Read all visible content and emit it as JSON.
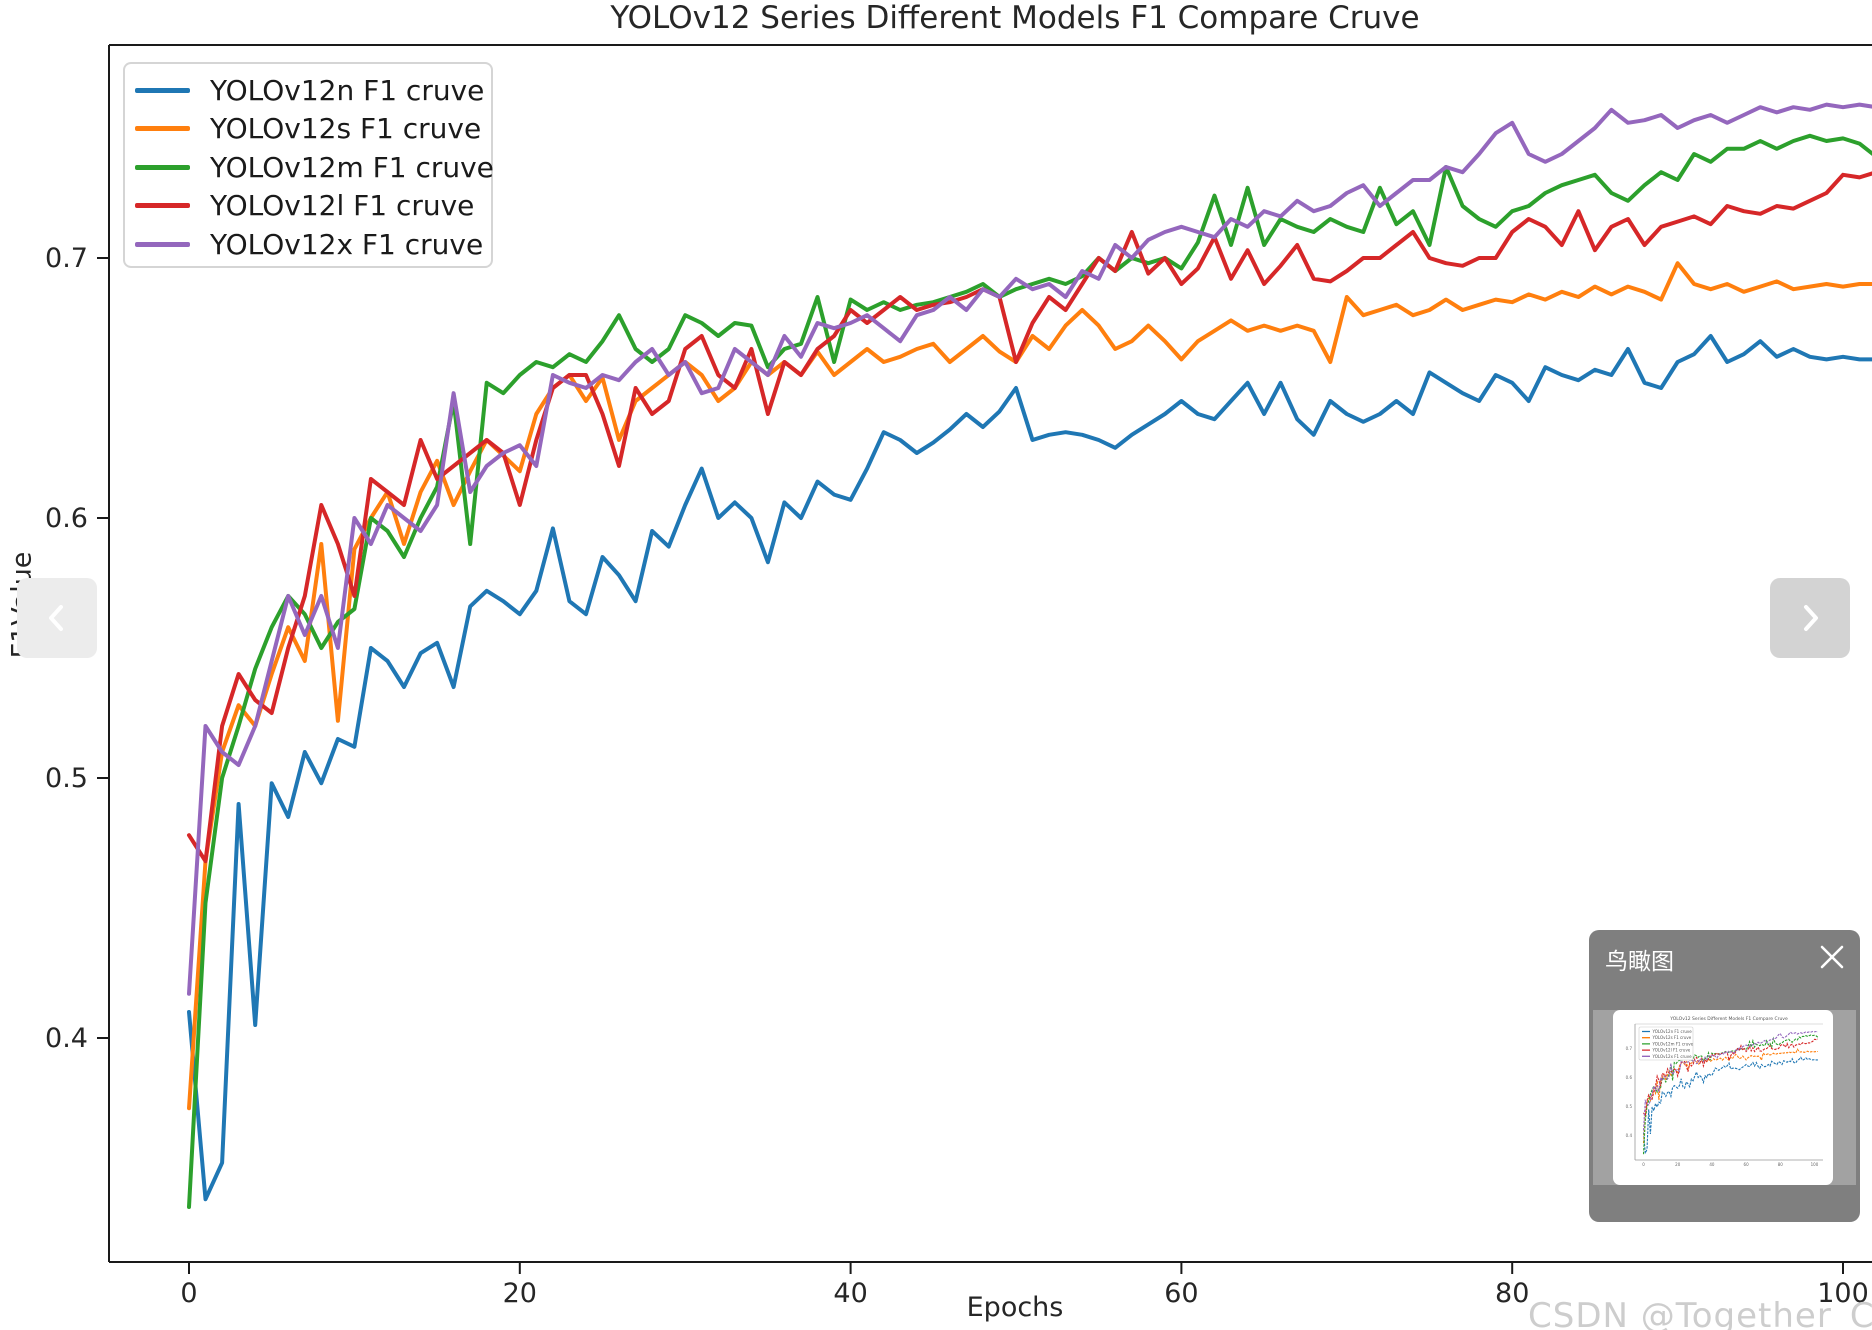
{
  "watermark": "CSDN @Together_CZ",
  "overview_panel": {
    "title": "鸟瞰图"
  },
  "chart_data": {
    "type": "line",
    "title": "YOLOv12 Series Different Models F1 Compare Cruve",
    "xlabel": "Epochs",
    "ylabel": "F1Value",
    "x_ticks": [
      0,
      20,
      40,
      60,
      80,
      100
    ],
    "y_ticks": [
      0.4,
      0.5,
      0.6,
      0.7
    ],
    "xlim": [
      -5,
      105
    ],
    "ylim": [
      0.315,
      0.785
    ],
    "grid": false,
    "legend_position": "upper left",
    "epoch_start": 0,
    "epoch_step": 1,
    "series": [
      {
        "name": "YOLOv12n F1 cruve",
        "color": "#1f77b4",
        "values": [
          0.41,
          0.338,
          0.352,
          0.49,
          0.405,
          0.498,
          0.485,
          0.51,
          0.498,
          0.515,
          0.512,
          0.55,
          0.545,
          0.535,
          0.548,
          0.552,
          0.535,
          0.566,
          0.572,
          0.568,
          0.563,
          0.572,
          0.596,
          0.568,
          0.563,
          0.585,
          0.578,
          0.568,
          0.595,
          0.589,
          0.605,
          0.619,
          0.6,
          0.606,
          0.6,
          0.583,
          0.606,
          0.6,
          0.614,
          0.609,
          0.607,
          0.619,
          0.633,
          0.63,
          0.625,
          0.629,
          0.634,
          0.64,
          0.635,
          0.641,
          0.65,
          0.63,
          0.632,
          0.633,
          0.632,
          0.63,
          0.627,
          0.632,
          0.636,
          0.64,
          0.645,
          0.64,
          0.638,
          0.645,
          0.652,
          0.64,
          0.652,
          0.638,
          0.632,
          0.645,
          0.64,
          0.637,
          0.64,
          0.645,
          0.64,
          0.656,
          0.652,
          0.648,
          0.645,
          0.655,
          0.652,
          0.645,
          0.658,
          0.655,
          0.653,
          0.657,
          0.655,
          0.665,
          0.652,
          0.65,
          0.66,
          0.663,
          0.67,
          0.66,
          0.663,
          0.668,
          0.662,
          0.665,
          0.662,
          0.661,
          0.662,
          0.661,
          0.661
        ]
      },
      {
        "name": "YOLOv12s F1 cruve",
        "color": "#ff7f0e",
        "values": [
          0.373,
          0.468,
          0.51,
          0.528,
          0.52,
          0.54,
          0.558,
          0.545,
          0.59,
          0.522,
          0.588,
          0.6,
          0.61,
          0.59,
          0.61,
          0.622,
          0.605,
          0.618,
          0.63,
          0.624,
          0.618,
          0.64,
          0.65,
          0.655,
          0.645,
          0.654,
          0.63,
          0.645,
          0.65,
          0.655,
          0.66,
          0.655,
          0.645,
          0.65,
          0.66,
          0.655,
          0.66,
          0.655,
          0.664,
          0.655,
          0.66,
          0.665,
          0.66,
          0.662,
          0.665,
          0.667,
          0.66,
          0.665,
          0.67,
          0.664,
          0.66,
          0.67,
          0.665,
          0.674,
          0.68,
          0.674,
          0.665,
          0.668,
          0.674,
          0.668,
          0.661,
          0.668,
          0.672,
          0.676,
          0.672,
          0.674,
          0.672,
          0.674,
          0.672,
          0.66,
          0.685,
          0.678,
          0.68,
          0.682,
          0.678,
          0.68,
          0.684,
          0.68,
          0.682,
          0.684,
          0.683,
          0.686,
          0.684,
          0.687,
          0.685,
          0.689,
          0.686,
          0.689,
          0.687,
          0.684,
          0.698,
          0.69,
          0.688,
          0.69,
          0.687,
          0.689,
          0.691,
          0.688,
          0.689,
          0.69,
          0.689,
          0.69,
          0.69
        ]
      },
      {
        "name": "YOLOv12m F1 cruve",
        "color": "#2ca02c",
        "values": [
          0.335,
          0.452,
          0.5,
          0.52,
          0.542,
          0.558,
          0.57,
          0.563,
          0.55,
          0.56,
          0.565,
          0.6,
          0.595,
          0.585,
          0.6,
          0.612,
          0.645,
          0.59,
          0.652,
          0.648,
          0.655,
          0.66,
          0.658,
          0.663,
          0.66,
          0.668,
          0.678,
          0.665,
          0.66,
          0.665,
          0.678,
          0.675,
          0.67,
          0.675,
          0.674,
          0.658,
          0.665,
          0.667,
          0.685,
          0.66,
          0.684,
          0.68,
          0.683,
          0.68,
          0.682,
          0.683,
          0.685,
          0.687,
          0.69,
          0.685,
          0.688,
          0.69,
          0.692,
          0.69,
          0.693,
          0.7,
          0.695,
          0.7,
          0.698,
          0.7,
          0.696,
          0.706,
          0.724,
          0.705,
          0.727,
          0.705,
          0.715,
          0.712,
          0.71,
          0.715,
          0.712,
          0.71,
          0.727,
          0.713,
          0.718,
          0.705,
          0.735,
          0.72,
          0.715,
          0.712,
          0.718,
          0.72,
          0.725,
          0.728,
          0.73,
          0.732,
          0.725,
          0.722,
          0.728,
          0.733,
          0.73,
          0.74,
          0.737,
          0.742,
          0.742,
          0.745,
          0.742,
          0.745,
          0.747,
          0.745,
          0.746,
          0.744,
          0.739
        ]
      },
      {
        "name": "YOLOv12l F1 cruve",
        "color": "#d62728",
        "values": [
          0.478,
          0.468,
          0.52,
          0.54,
          0.53,
          0.525,
          0.55,
          0.57,
          0.605,
          0.59,
          0.57,
          0.615,
          0.61,
          0.605,
          0.63,
          0.615,
          0.62,
          0.625,
          0.63,
          0.625,
          0.605,
          0.63,
          0.65,
          0.655,
          0.655,
          0.64,
          0.62,
          0.65,
          0.64,
          0.645,
          0.665,
          0.67,
          0.655,
          0.65,
          0.665,
          0.64,
          0.66,
          0.655,
          0.665,
          0.67,
          0.68,
          0.675,
          0.68,
          0.685,
          0.68,
          0.682,
          0.683,
          0.685,
          0.688,
          0.685,
          0.66,
          0.675,
          0.685,
          0.68,
          0.69,
          0.7,
          0.695,
          0.71,
          0.694,
          0.7,
          0.69,
          0.696,
          0.708,
          0.692,
          0.703,
          0.69,
          0.697,
          0.705,
          0.692,
          0.691,
          0.695,
          0.7,
          0.7,
          0.705,
          0.71,
          0.7,
          0.698,
          0.697,
          0.7,
          0.7,
          0.71,
          0.715,
          0.712,
          0.705,
          0.718,
          0.703,
          0.712,
          0.715,
          0.705,
          0.712,
          0.714,
          0.716,
          0.713,
          0.72,
          0.718,
          0.717,
          0.72,
          0.719,
          0.722,
          0.725,
          0.732,
          0.731,
          0.733
        ]
      },
      {
        "name": "YOLOv12x F1 cruve",
        "color": "#9467bd",
        "values": [
          0.417,
          0.52,
          0.51,
          0.505,
          0.52,
          0.545,
          0.57,
          0.555,
          0.57,
          0.55,
          0.6,
          0.59,
          0.605,
          0.6,
          0.595,
          0.605,
          0.648,
          0.61,
          0.62,
          0.625,
          0.628,
          0.62,
          0.655,
          0.652,
          0.65,
          0.655,
          0.653,
          0.66,
          0.665,
          0.655,
          0.66,
          0.648,
          0.65,
          0.665,
          0.66,
          0.655,
          0.67,
          0.662,
          0.675,
          0.673,
          0.675,
          0.678,
          0.673,
          0.668,
          0.678,
          0.68,
          0.685,
          0.68,
          0.688,
          0.685,
          0.692,
          0.688,
          0.69,
          0.685,
          0.695,
          0.692,
          0.705,
          0.7,
          0.707,
          0.71,
          0.712,
          0.71,
          0.708,
          0.715,
          0.712,
          0.718,
          0.716,
          0.722,
          0.718,
          0.72,
          0.725,
          0.728,
          0.72,
          0.725,
          0.73,
          0.73,
          0.735,
          0.733,
          0.74,
          0.748,
          0.752,
          0.74,
          0.737,
          0.74,
          0.745,
          0.75,
          0.757,
          0.752,
          0.753,
          0.755,
          0.75,
          0.753,
          0.755,
          0.752,
          0.755,
          0.758,
          0.756,
          0.758,
          0.757,
          0.759,
          0.758,
          0.759,
          0.758
        ]
      }
    ]
  }
}
